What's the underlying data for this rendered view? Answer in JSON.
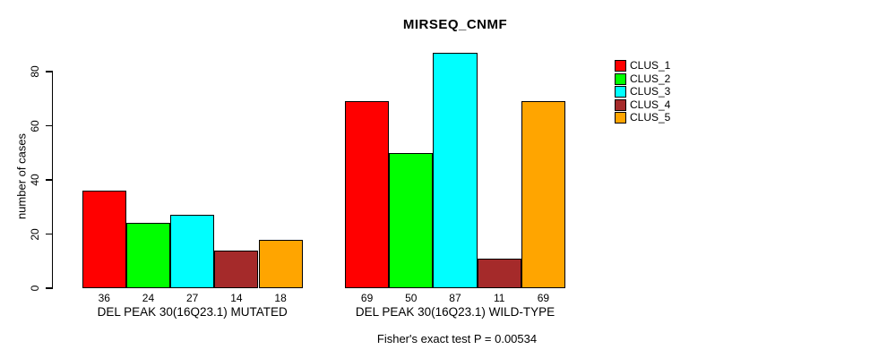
{
  "title": "MIRSEQ_CNMF",
  "y_axis_label": "number of cases",
  "footer_note": "Fisher's exact test P = 0.00534",
  "chart_data": {
    "type": "bar",
    "title": "MIRSEQ_CNMF",
    "xlabel": "",
    "ylabel": "number of cases",
    "ylim": [
      0,
      87
    ],
    "axis_ticks": [
      0,
      20,
      40,
      60,
      80
    ],
    "grid": false,
    "legend_position": "right",
    "categories": [
      "DEL PEAK 30(16Q23.1) MUTATED",
      "DEL PEAK 30(16Q23.1) WILD-TYPE"
    ],
    "series": [
      {
        "name": "CLUS_1",
        "color": "#FF0000",
        "values": [
          36,
          69
        ]
      },
      {
        "name": "CLUS_2",
        "color": "#00FF00",
        "values": [
          24,
          50
        ]
      },
      {
        "name": "CLUS_3",
        "color": "#00FFFF",
        "values": [
          27,
          87
        ]
      },
      {
        "name": "CLUS_4",
        "color": "#A52A2A",
        "values": [
          14,
          11
        ]
      },
      {
        "name": "CLUS_5",
        "color": "#FFA500",
        "values": [
          18,
          69
        ]
      }
    ],
    "bar_value_labels": true,
    "annotation": "Fisher's exact test P = 0.00534"
  }
}
